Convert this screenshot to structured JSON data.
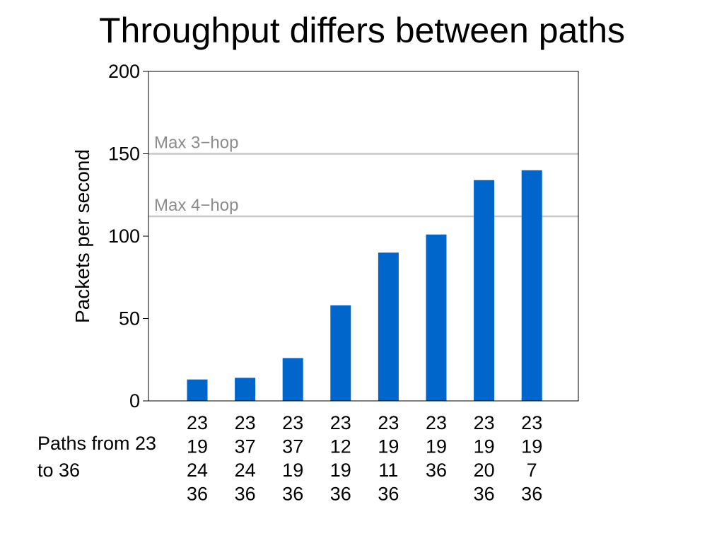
{
  "slide": {
    "title": "Throughput differs between paths",
    "side_label_line1": "Paths from 23",
    "side_label_line2": "to 36"
  },
  "chart_data": {
    "type": "bar",
    "title": "Throughput differs between paths",
    "xlabel": "",
    "ylabel": "Packets per second",
    "ylim": [
      0,
      200
    ],
    "yticks": [
      0,
      50,
      100,
      150,
      200
    ],
    "grid": false,
    "bar_color": "#0066cc",
    "reference_color": "#c8c8c8",
    "reference_label_color": "#8c8c8c",
    "categories": [
      [
        "23",
        "19",
        "24",
        "36"
      ],
      [
        "23",
        "37",
        "24",
        "36"
      ],
      [
        "23",
        "37",
        "19",
        "36"
      ],
      [
        "23",
        "12",
        "19",
        "36"
      ],
      [
        "23",
        "19",
        "11",
        "36"
      ],
      [
        "23",
        "19",
        "36"
      ],
      [
        "23",
        "19",
        "20",
        "36"
      ],
      [
        "23",
        "19",
        "7",
        "36"
      ]
    ],
    "values": [
      13,
      14,
      26,
      58,
      90,
      101,
      134,
      140
    ],
    "reference_lines": [
      {
        "label": "Max 3−hop",
        "value": 150
      },
      {
        "label": "Max 4−hop",
        "value": 112
      }
    ]
  }
}
